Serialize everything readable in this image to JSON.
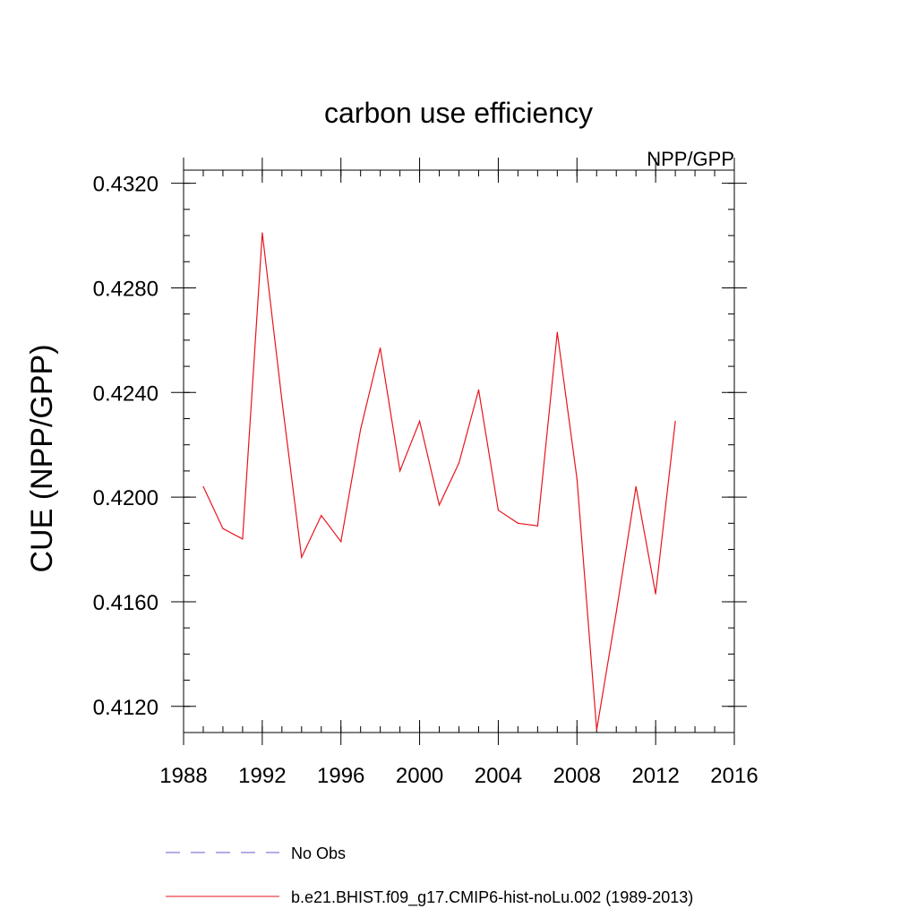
{
  "chart_data": {
    "type": "line",
    "title": "carbon use efficiency",
    "subtitle": "NPP/GPP",
    "xlabel": "",
    "ylabel": "CUE  (NPP/GPP)",
    "xlim": [
      1988,
      2016
    ],
    "ylim": [
      0.411,
      0.4325
    ],
    "x_ticks": [
      1988,
      1992,
      1996,
      2000,
      2004,
      2008,
      2012,
      2016
    ],
    "x_minor_step": 1,
    "y_ticks": [
      "0.4120",
      "0.4160",
      "0.4200",
      "0.4240",
      "0.4280",
      "0.4320"
    ],
    "y_minor_step": 0.001,
    "grid": false,
    "legend_position": "bottom",
    "series": [
      {
        "name": "No Obs",
        "color": "#6a5acd",
        "dash": "dashed",
        "x": [],
        "y": []
      },
      {
        "name": "b.e21.BHIST.f09_g17.CMIP6-hist-noLu.002 (1989-2013)",
        "color": "#e8141e",
        "dash": "solid",
        "x": [
          1989,
          1990,
          1991,
          1992,
          1993,
          1994,
          1995,
          1996,
          1997,
          1998,
          1999,
          2000,
          2001,
          2002,
          2003,
          2004,
          2005,
          2006,
          2007,
          2008,
          2009,
          2010,
          2011,
          2012,
          2013
        ],
        "y": [
          0.4204,
          0.4188,
          0.4184,
          0.4301,
          0.4237,
          0.4177,
          0.4193,
          0.4183,
          0.4226,
          0.4257,
          0.421,
          0.4229,
          0.4197,
          0.4213,
          0.4241,
          0.4195,
          0.419,
          0.4189,
          0.4263,
          0.4207,
          0.4111,
          0.4156,
          0.4204,
          0.4163,
          0.4229
        ]
      }
    ]
  }
}
